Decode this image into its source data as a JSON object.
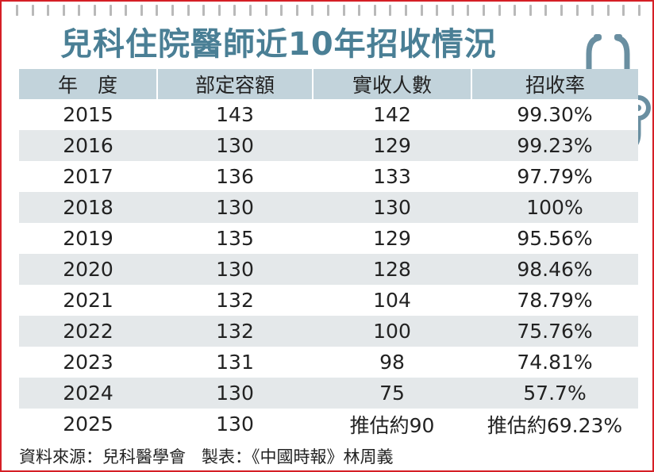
{
  "title": "兒科住院醫師近10年招收情況",
  "colors": {
    "border": "#d51f26",
    "title": "#4a7f95",
    "header_bg": "#c2d3db",
    "stripe_bg": "#e4e8ea",
    "stethoscope": "#6a8fa1"
  },
  "decor": {
    "top_icon": "stethoscope-icon"
  },
  "chart_data": {
    "type": "table",
    "title": "兒科住院醫師近10年招收情況",
    "columns": [
      "年　度",
      "部定容額",
      "實收人數",
      "招收率"
    ],
    "rows": [
      [
        "2015",
        "143",
        "142",
        "99.30%"
      ],
      [
        "2016",
        "130",
        "129",
        "99.23%"
      ],
      [
        "2017",
        "136",
        "133",
        "97.79%"
      ],
      [
        "2018",
        "130",
        "130",
        "100%"
      ],
      [
        "2019",
        "135",
        "129",
        "95.56%"
      ],
      [
        "2020",
        "130",
        "128",
        "98.46%"
      ],
      [
        "2021",
        "132",
        "104",
        "78.79%"
      ],
      [
        "2022",
        "132",
        "100",
        "75.76%"
      ],
      [
        "2023",
        "131",
        "98",
        "74.81%"
      ],
      [
        "2024",
        "130",
        "75",
        "57.7%"
      ],
      [
        "2025",
        "130",
        "推估約90",
        "推估約69.23%"
      ]
    ]
  },
  "footer": {
    "source": "資料來源：兒科醫學會",
    "credit": "製表：《中國時報》林周義"
  }
}
